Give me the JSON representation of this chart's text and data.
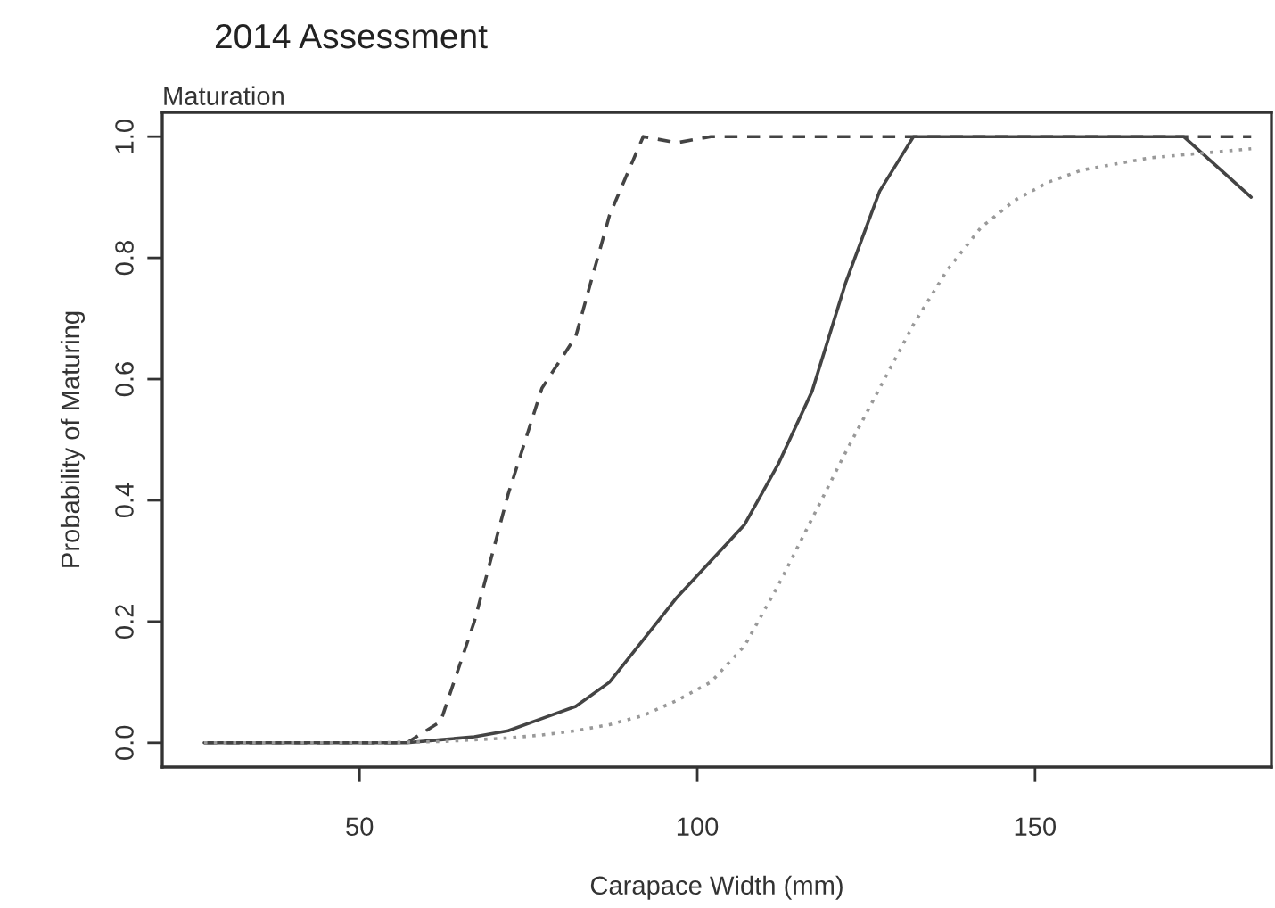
{
  "chart_data": {
    "type": "line",
    "title": "2014 Assessment",
    "subtitle": "Maturation",
    "xlabel": "Carapace Width (mm)",
    "ylabel": "Probability of Maturing",
    "x": [
      27,
      32,
      37,
      42,
      47,
      52,
      57,
      62,
      67,
      72,
      77,
      82,
      87,
      92,
      97,
      102,
      107,
      112,
      117,
      122,
      127,
      132,
      137,
      142,
      147,
      152,
      157,
      162,
      167,
      172,
      177,
      182
    ],
    "series": [
      {
        "color": "#444444",
        "line_style": "solid",
        "values": [
          0,
          0,
          0,
          0,
          0,
          0,
          0,
          0.005,
          0.01,
          0.02,
          0.04,
          0.06,
          0.1,
          0.17,
          0.24,
          0.3,
          0.36,
          0.46,
          0.58,
          0.76,
          0.91,
          1.0,
          1.0,
          1.0,
          1.0,
          1.0,
          1.0,
          1.0,
          1.0,
          1.0,
          0.95,
          0.9
        ]
      },
      {
        "color": "#444444",
        "line_style": "dashed",
        "values": [
          0,
          0,
          0,
          0,
          0,
          0,
          0,
          0.035,
          0.2,
          0.41,
          0.585,
          0.67,
          0.87,
          1.0,
          0.99,
          1.0,
          1.0,
          1.0,
          1.0,
          1.0,
          1.0,
          1.0,
          1.0,
          1.0,
          1.0,
          1.0,
          1.0,
          1.0,
          1.0,
          1.0,
          1.0,
          1.0
        ]
      },
      {
        "color": "#999999",
        "line_style": "dotted",
        "values": [
          0,
          0,
          0,
          0,
          0,
          0,
          0.001,
          0.002,
          0.005,
          0.008,
          0.013,
          0.02,
          0.03,
          0.045,
          0.07,
          0.1,
          0.16,
          0.26,
          0.37,
          0.48,
          0.585,
          0.69,
          0.78,
          0.85,
          0.895,
          0.925,
          0.945,
          0.955,
          0.965,
          0.97,
          0.975,
          0.98
        ]
      }
    ],
    "xlim": [
      20.8,
      185
    ],
    "ylim": [
      -0.04,
      1.04
    ],
    "xticks": [
      50,
      100,
      150
    ],
    "yticks": [
      {
        "value": 0,
        "label": "0.0"
      },
      {
        "value": 0.2,
        "label": "0.2"
      },
      {
        "value": 0.4,
        "label": "0.4"
      },
      {
        "value": 0.6,
        "label": "0.6"
      },
      {
        "value": 0.8,
        "label": "0.8"
      },
      {
        "value": 1,
        "label": "1.0"
      }
    ],
    "grid": false,
    "legend": false
  }
}
